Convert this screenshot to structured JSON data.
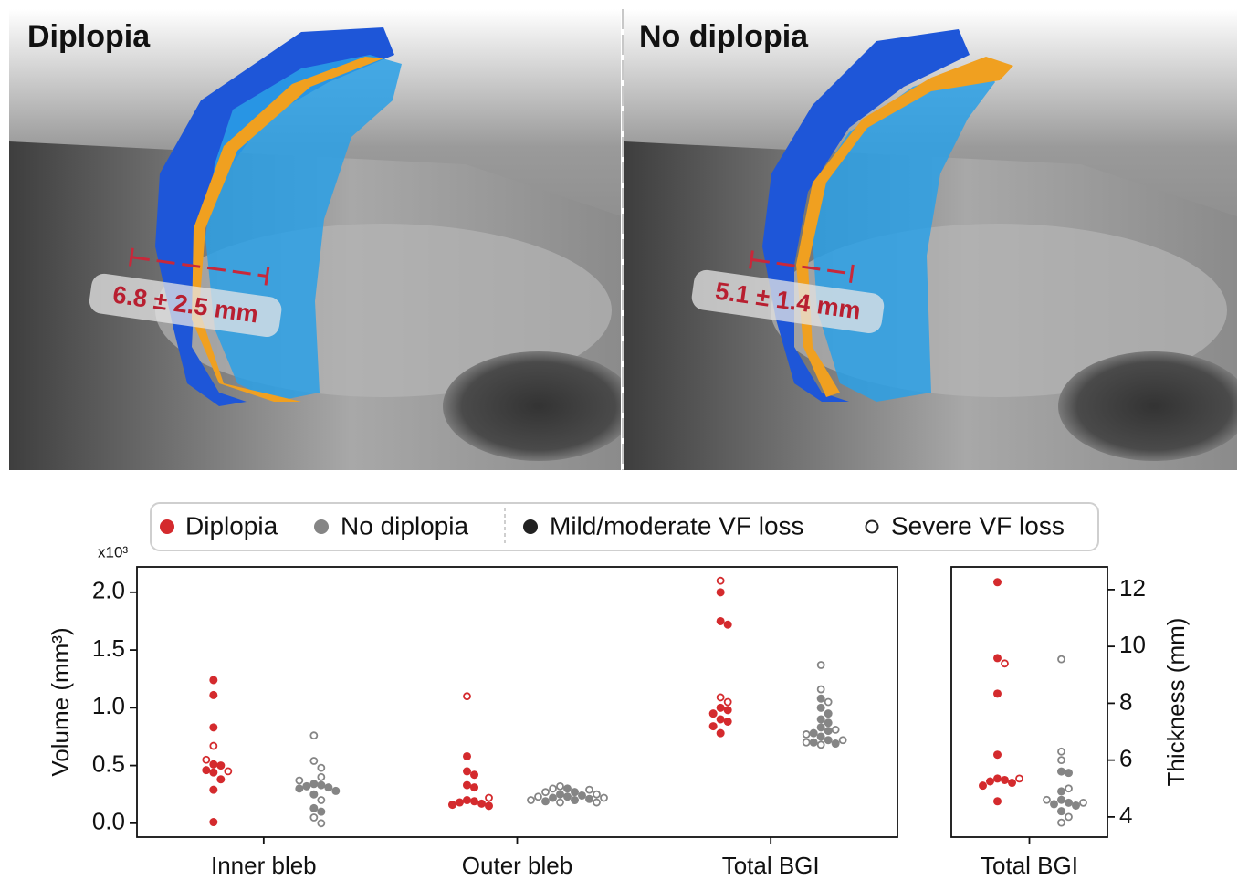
{
  "panels": [
    {
      "title": "Diplopia",
      "measurement": "6.8 ± 2.5 mm"
    },
    {
      "title": "No diplopia",
      "measurement": "5.1 ± 1.4 mm"
    }
  ],
  "legend": {
    "groups": [
      {
        "name": "Diplopia",
        "color": "#d42a2d"
      },
      {
        "name": "No diplopia",
        "color": "#858585"
      }
    ],
    "markers": [
      {
        "name": "Mild/moderate VF loss",
        "color": "#222222"
      },
      {
        "name": "Severe VF loss",
        "color": "#222222"
      }
    ]
  },
  "chart_data": [
    {
      "type": "strip",
      "y_label": "Volume (mm³)",
      "y_scale_label": "x10³",
      "categories": [
        "Inner bleb",
        "Outer bleb",
        "Total BGI"
      ],
      "ylim": [
        -0.12,
        2.22
      ],
      "yticks": [
        {
          "value": 0,
          "label": "0.0"
        },
        {
          "value": 0.5,
          "label": "0.5"
        },
        {
          "value": 1,
          "label": "1.0"
        },
        {
          "value": 1.5,
          "label": "1.5"
        },
        {
          "value": 2,
          "label": "2.0"
        }
      ],
      "series": [
        {
          "name": "Diplopia",
          "color": "#d42a2d",
          "mild": [
            [
              1.24,
              1.11,
              0.83,
              0.51,
              0.5,
              0.46,
              0.44,
              0.38,
              0.29,
              0.01
            ],
            [
              0.58,
              0.45,
              0.42,
              0.33,
              0.31,
              0.2,
              0.19,
              0.18,
              0.17,
              0.16,
              0.15
            ],
            [
              2.0,
              1.75,
              1.72,
              1.0,
              0.98,
              0.95,
              0.9,
              0.88,
              0.84,
              0.78
            ]
          ],
          "severe": [
            [
              0.67,
              0.55,
              0.45
            ],
            [
              1.1,
              0.22
            ],
            [
              2.1,
              1.09,
              1.05
            ]
          ]
        },
        {
          "name": "No diplopia",
          "color": "#858585",
          "mild": [
            [
              0.34,
              0.33,
              0.32,
              0.31,
              0.3,
              0.28,
              0.25,
              0.13,
              0.1
            ],
            [
              0.3,
              0.27,
              0.25,
              0.24,
              0.23,
              0.22,
              0.21,
              0.2,
              0.19
            ],
            [
              1.08,
              1.0,
              0.95,
              0.9,
              0.87,
              0.83,
              0.8,
              0.78,
              0.75,
              0.72,
              0.7,
              0.69
            ]
          ],
          "severe": [
            [
              0.76,
              0.54,
              0.48,
              0.4,
              0.37,
              0.2,
              0.05,
              0.0
            ],
            [
              0.32,
              0.3,
              0.29,
              0.27,
              0.25,
              0.23,
              0.22,
              0.2,
              0.18,
              0.18
            ],
            [
              1.37,
              1.16,
              1.05,
              0.81,
              0.77,
              0.72,
              0.7,
              0.68
            ]
          ]
        }
      ]
    },
    {
      "type": "strip",
      "y_label": "Thickness (mm)",
      "categories": [
        "Total BGI"
      ],
      "ylim": [
        3.29,
        12.8
      ],
      "yticks": [
        4,
        6,
        8,
        10,
        12
      ],
      "series": [
        {
          "name": "Diplopia",
          "color": "#d42a2d",
          "mild": [
            [
              12.26,
              9.59,
              8.34,
              6.19,
              5.35,
              5.3,
              5.25,
              5.2,
              5.1,
              4.55
            ]
          ],
          "severe": [
            [
              9.4,
              5.35
            ]
          ]
        },
        {
          "name": "No diplopia",
          "color": "#858585",
          "mild": [
            [
              5.6,
              5.55,
              4.9,
              4.6,
              4.5,
              4.45,
              4.4,
              4.2
            ]
          ],
          "severe": [
            [
              9.55,
              6.3,
              6.0,
              5.0,
              4.6,
              4.5,
              4.0,
              3.8
            ]
          ]
        }
      ]
    }
  ]
}
